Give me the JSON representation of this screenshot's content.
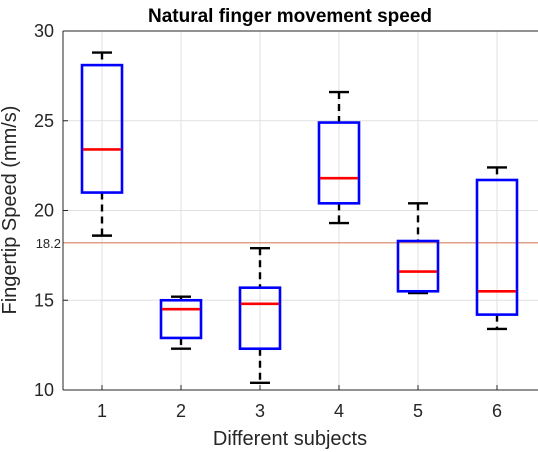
{
  "chart_data": {
    "type": "box",
    "title": "Natural finger movement speed",
    "xlabel": "Different subjects",
    "ylabel": "Fingertip Speed (mm/s)",
    "ylim": [
      10,
      30
    ],
    "yticks": [
      10,
      15,
      20,
      25,
      30
    ],
    "grid": true,
    "categories": [
      "1",
      "2",
      "3",
      "4",
      "5",
      "6"
    ],
    "boxes": [
      {
        "category": "1",
        "whisker_low": 18.6,
        "q1": 21.0,
        "median": 23.4,
        "q3": 28.1,
        "whisker_high": 28.8
      },
      {
        "category": "2",
        "whisker_low": 12.3,
        "q1": 12.9,
        "median": 14.5,
        "q3": 15.0,
        "whisker_high": 15.2
      },
      {
        "category": "3",
        "whisker_low": 10.4,
        "q1": 12.3,
        "median": 14.8,
        "q3": 15.7,
        "whisker_high": 17.9
      },
      {
        "category": "4",
        "whisker_low": 19.3,
        "q1": 20.4,
        "median": 21.8,
        "q3": 24.9,
        "whisker_high": 26.6
      },
      {
        "category": "5",
        "whisker_low": 15.4,
        "q1": 15.5,
        "median": 16.6,
        "q3": 18.3,
        "whisker_high": 20.4
      },
      {
        "category": "6",
        "whisker_low": 13.4,
        "q1": 14.2,
        "median": 15.5,
        "q3": 21.7,
        "whisker_high": 22.4
      }
    ],
    "reference_line": {
      "value": 18.2,
      "label": "18.2"
    },
    "colors": {
      "box": "#0000ff",
      "median": "#ff0000",
      "whisker": "#000000",
      "reference_line": "#d9825b",
      "grid": "#e0e0e0",
      "axes": "#262626"
    }
  }
}
